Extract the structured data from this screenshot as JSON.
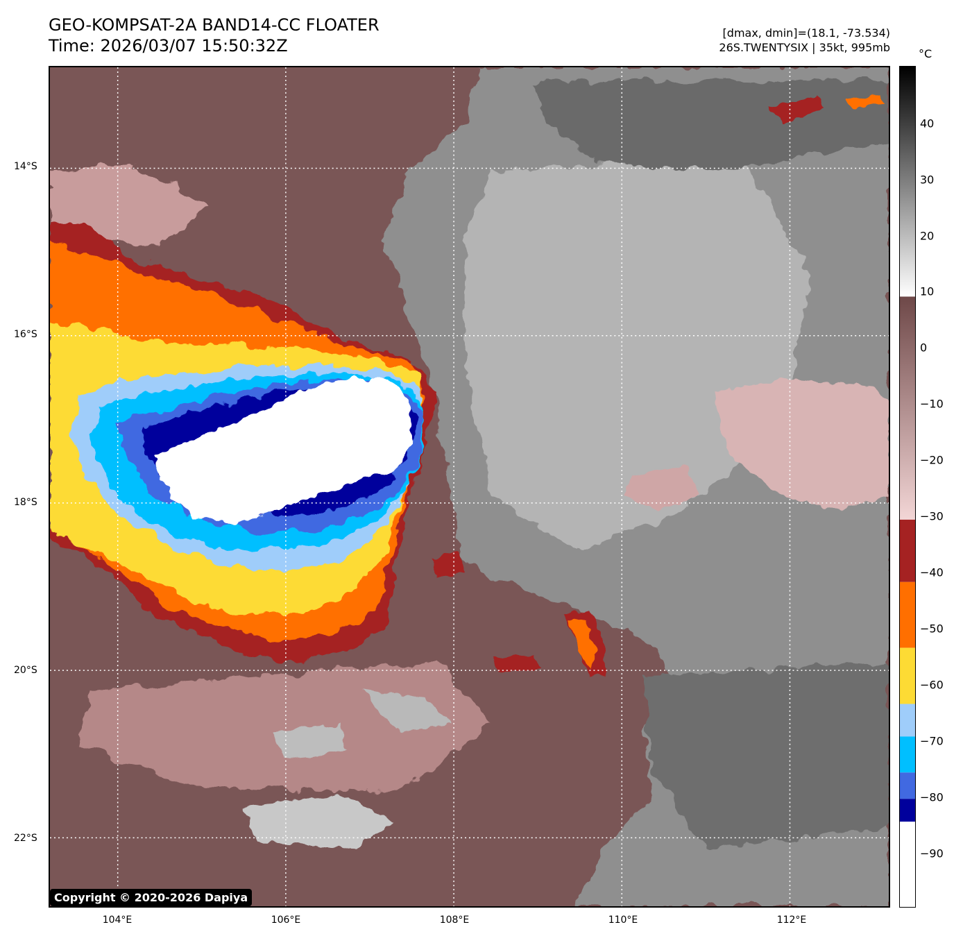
{
  "header": {
    "title_line1": "GEO-KOMPSAT-2A BAND14-CC FLOATER",
    "title_line2": "Time: 2026/03/07 15:50:32Z",
    "info_line1": "[dmax, dmin]=(18.1, -73.534)",
    "info_line2": "26S.TWENTYSIX | 35kt, 995mb"
  },
  "map": {
    "lat_labels": [
      "14°S",
      "16°S",
      "18°S",
      "20°S",
      "22°S"
    ],
    "lon_labels": [
      "104°E",
      "106°E",
      "108°E",
      "110°E",
      "112°E"
    ]
  },
  "colorbar": {
    "unit": "°C",
    "ticks": [
      "40",
      "30",
      "20",
      "10",
      "0",
      "−10",
      "−20",
      "−30",
      "−40",
      "−50",
      "−60",
      "−70",
      "−80",
      "−90"
    ],
    "colors": {
      "black": "#000000",
      "white": "#ffffff",
      "brown": "#6e4848",
      "pink": "#f3d6d6",
      "darkred": "#a52222",
      "orange": "#ff6f00",
      "yellow": "#fddb34",
      "lightblue": "#9fcdfa",
      "cyan": "#00bfff",
      "royalblue": "#4169e1",
      "navy": "#00009c"
    }
  },
  "copyright": "Copyright © 2020-2026 Dapiya"
}
